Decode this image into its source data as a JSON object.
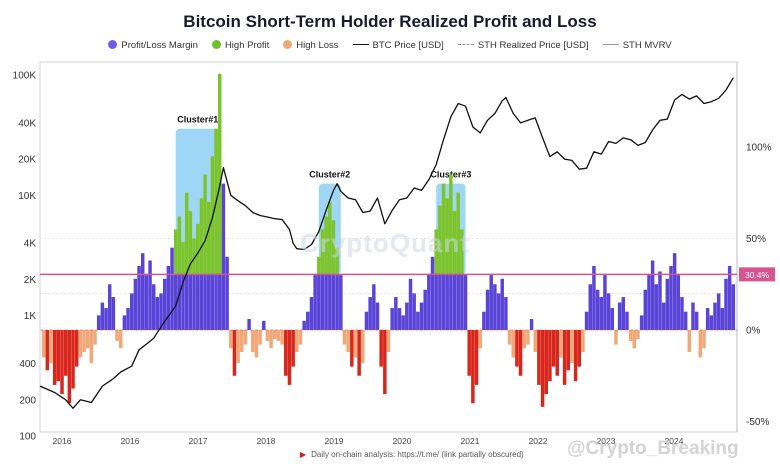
{
  "chart_data": {
    "type": "bar",
    "title": "Bitcoin Short-Term Holder Realized Profit and Loss",
    "legend": [
      {
        "label": "Profit/Loss Margin",
        "kind": "dot",
        "color": "#6d5ce8"
      },
      {
        "label": "High Profit",
        "kind": "dot",
        "color": "#6fc12a"
      },
      {
        "label": "High Loss",
        "kind": "dot",
        "color": "#f0a878"
      },
      {
        "label": "BTC Price [USD]",
        "kind": "line",
        "color": "#111111"
      },
      {
        "label": "STH Realized Price [USD]",
        "kind": "dash",
        "color": "#999999"
      },
      {
        "label": "STH MVRV",
        "kind": "line",
        "color": "#999999"
      }
    ],
    "legend_placement": "top-center",
    "x_ticks": [
      "2016",
      "2016",
      "2017",
      "2018",
      "2019",
      "2020",
      "2021",
      "2022",
      "2023",
      "2024"
    ],
    "left_axis": {
      "scale": "log",
      "ticks": [
        "100",
        "200",
        "400",
        "1K",
        "2K",
        "4K",
        "10K",
        "20K",
        "40K",
        "100K"
      ],
      "range": [
        100,
        100000
      ]
    },
    "right_axis": {
      "ticks": [
        "100%",
        "50%",
        "0%",
        "-50%"
      ],
      "range": [
        -50,
        150
      ]
    },
    "threshold": {
      "value": 30.4,
      "label": "30.4%",
      "color": "#d6558f"
    },
    "profit_loss_margin_color": "#5a44d8",
    "high_profit_color": "#7cc42a",
    "high_loss_color": "#f0a878",
    "deep_loss_color": "#d8261c",
    "btc_price_color": "#111111",
    "clusters": [
      {
        "label": "Cluster#1",
        "x_start": 2017.35,
        "x_end": 2017.95,
        "top_percent": 110
      },
      {
        "label": "Cluster#2",
        "x_start": 2019.3,
        "x_end": 2019.6,
        "top_percent": 80
      },
      {
        "label": "Cluster#3",
        "x_start": 2020.9,
        "x_end": 2021.3,
        "top_percent": 80
      }
    ],
    "cluster_color": "#86cdf2",
    "btc_price": [
      [
        2015.5,
        260
      ],
      [
        2015.7,
        230
      ],
      [
        2015.85,
        200
      ],
      [
        2015.95,
        170
      ],
      [
        2016.05,
        200
      ],
      [
        2016.2,
        190
      ],
      [
        2016.35,
        260
      ],
      [
        2016.5,
        300
      ],
      [
        2016.6,
        340
      ],
      [
        2016.75,
        380
      ],
      [
        2016.85,
        520
      ],
      [
        2016.95,
        580
      ],
      [
        2017.05,
        650
      ],
      [
        2017.2,
        900
      ],
      [
        2017.35,
        1200
      ],
      [
        2017.45,
        1900
      ],
      [
        2017.55,
        2700
      ],
      [
        2017.65,
        3300
      ],
      [
        2017.75,
        4200
      ],
      [
        2017.85,
        6500
      ],
      [
        2017.95,
        12000
      ],
      [
        2018.0,
        17000
      ],
      [
        2018.05,
        13000
      ],
      [
        2018.1,
        10000
      ],
      [
        2018.2,
        9000
      ],
      [
        2018.3,
        8200
      ],
      [
        2018.4,
        7200
      ],
      [
        2018.5,
        6800
      ],
      [
        2018.6,
        6600
      ],
      [
        2018.7,
        6400
      ],
      [
        2018.8,
        6300
      ],
      [
        2018.9,
        5200
      ],
      [
        2018.95,
        4000
      ],
      [
        2019.0,
        3600
      ],
      [
        2019.1,
        3550
      ],
      [
        2019.2,
        3900
      ],
      [
        2019.3,
        5000
      ],
      [
        2019.4,
        7500
      ],
      [
        2019.5,
        11000
      ],
      [
        2019.55,
        12500
      ],
      [
        2019.6,
        10800
      ],
      [
        2019.7,
        9500
      ],
      [
        2019.8,
        9200
      ],
      [
        2019.9,
        7200
      ],
      [
        2020.0,
        7400
      ],
      [
        2020.1,
        9500
      ],
      [
        2020.2,
        5800
      ],
      [
        2020.3,
        7500
      ],
      [
        2020.4,
        9200
      ],
      [
        2020.5,
        9500
      ],
      [
        2020.6,
        11500
      ],
      [
        2020.7,
        11000
      ],
      [
        2020.8,
        13500
      ],
      [
        2020.9,
        18000
      ],
      [
        2021.0,
        29000
      ],
      [
        2021.1,
        45000
      ],
      [
        2021.2,
        58000
      ],
      [
        2021.3,
        55000
      ],
      [
        2021.4,
        37000
      ],
      [
        2021.5,
        33000
      ],
      [
        2021.6,
        42000
      ],
      [
        2021.7,
        48000
      ],
      [
        2021.8,
        61000
      ],
      [
        2021.85,
        65000
      ],
      [
        2021.95,
        48000
      ],
      [
        2022.05,
        40000
      ],
      [
        2022.15,
        42000
      ],
      [
        2022.25,
        44000
      ],
      [
        2022.35,
        30000
      ],
      [
        2022.45,
        21000
      ],
      [
        2022.55,
        23000
      ],
      [
        2022.65,
        20000
      ],
      [
        2022.75,
        19500
      ],
      [
        2022.85,
        16500
      ],
      [
        2022.95,
        16800
      ],
      [
        2023.05,
        23000
      ],
      [
        2023.15,
        22000
      ],
      [
        2023.25,
        28000
      ],
      [
        2023.35,
        27000
      ],
      [
        2023.45,
        30000
      ],
      [
        2023.55,
        29000
      ],
      [
        2023.65,
        26000
      ],
      [
        2023.75,
        27500
      ],
      [
        2023.85,
        35000
      ],
      [
        2023.95,
        42000
      ],
      [
        2024.05,
        43000
      ],
      [
        2024.15,
        62000
      ],
      [
        2024.25,
        69000
      ],
      [
        2024.35,
        63000
      ],
      [
        2024.45,
        67000
      ],
      [
        2024.55,
        58000
      ],
      [
        2024.65,
        60000
      ],
      [
        2024.75,
        64000
      ],
      [
        2024.85,
        75000
      ],
      [
        2024.95,
        95000
      ]
    ],
    "margin_bars": [
      [
        2015.55,
        -15
      ],
      [
        2015.6,
        -22
      ],
      [
        2015.65,
        -18
      ],
      [
        2015.7,
        -30
      ],
      [
        2015.75,
        -28
      ],
      [
        2015.8,
        -35
      ],
      [
        2015.85,
        -25
      ],
      [
        2015.9,
        -40
      ],
      [
        2015.95,
        -32
      ],
      [
        2016.0,
        -20
      ],
      [
        2016.05,
        -15
      ],
      [
        2016.1,
        -12
      ],
      [
        2016.15,
        -10
      ],
      [
        2016.2,
        -18
      ],
      [
        2016.25,
        -8
      ],
      [
        2016.3,
        8
      ],
      [
        2016.35,
        15
      ],
      [
        2016.4,
        12
      ],
      [
        2016.45,
        25
      ],
      [
        2016.5,
        18
      ],
      [
        2016.55,
        -6
      ],
      [
        2016.6,
        -10
      ],
      [
        2016.65,
        8
      ],
      [
        2016.7,
        12
      ],
      [
        2016.75,
        20
      ],
      [
        2016.8,
        28
      ],
      [
        2016.85,
        35
      ],
      [
        2016.9,
        42
      ],
      [
        2016.95,
        30
      ],
      [
        2017.0,
        38
      ],
      [
        2017.05,
        25
      ],
      [
        2017.1,
        18
      ],
      [
        2017.15,
        20
      ],
      [
        2017.2,
        28
      ],
      [
        2017.25,
        35
      ],
      [
        2017.3,
        45
      ],
      [
        2017.35,
        55
      ],
      [
        2017.4,
        62
      ],
      [
        2017.45,
        48
      ],
      [
        2017.5,
        75
      ],
      [
        2017.55,
        65
      ],
      [
        2017.6,
        50
      ],
      [
        2017.65,
        58
      ],
      [
        2017.7,
        72
      ],
      [
        2017.75,
        85
      ],
      [
        2017.8,
        70
      ],
      [
        2017.85,
        95
      ],
      [
        2017.9,
        110
      ],
      [
        2017.95,
        140
      ],
      [
        2018.0,
        80
      ],
      [
        2018.05,
        40
      ],
      [
        2018.1,
        -10
      ],
      [
        2018.15,
        -25
      ],
      [
        2018.2,
        -18
      ],
      [
        2018.25,
        -12
      ],
      [
        2018.3,
        -8
      ],
      [
        2018.35,
        6
      ],
      [
        2018.4,
        -12
      ],
      [
        2018.45,
        -15
      ],
      [
        2018.5,
        -8
      ],
      [
        2018.55,
        5
      ],
      [
        2018.6,
        -6
      ],
      [
        2018.65,
        -10
      ],
      [
        2018.7,
        -5
      ],
      [
        2018.75,
        -6
      ],
      [
        2018.8,
        -8
      ],
      [
        2018.85,
        -25
      ],
      [
        2018.9,
        -30
      ],
      [
        2018.95,
        -20
      ],
      [
        2019.0,
        -12
      ],
      [
        2019.05,
        -8
      ],
      [
        2019.1,
        5
      ],
      [
        2019.15,
        10
      ],
      [
        2019.2,
        18
      ],
      [
        2019.25,
        30
      ],
      [
        2019.3,
        40
      ],
      [
        2019.35,
        55
      ],
      [
        2019.4,
        62
      ],
      [
        2019.45,
        70
      ],
      [
        2019.5,
        60
      ],
      [
        2019.55,
        45
      ],
      [
        2019.6,
        30
      ],
      [
        2019.65,
        -8
      ],
      [
        2019.7,
        -12
      ],
      [
        2019.75,
        -20
      ],
      [
        2019.8,
        -15
      ],
      [
        2019.85,
        -25
      ],
      [
        2019.9,
        -18
      ],
      [
        2019.95,
        10
      ],
      [
        2020.0,
        18
      ],
      [
        2020.05,
        25
      ],
      [
        2020.1,
        15
      ],
      [
        2020.15,
        -20
      ],
      [
        2020.2,
        -35
      ],
      [
        2020.25,
        -12
      ],
      [
        2020.3,
        12
      ],
      [
        2020.35,
        18
      ],
      [
        2020.4,
        12
      ],
      [
        2020.45,
        8
      ],
      [
        2020.5,
        15
      ],
      [
        2020.55,
        28
      ],
      [
        2020.6,
        20
      ],
      [
        2020.65,
        10
      ],
      [
        2020.7,
        15
      ],
      [
        2020.75,
        22
      ],
      [
        2020.8,
        30
      ],
      [
        2020.85,
        40
      ],
      [
        2020.9,
        55
      ],
      [
        2020.95,
        68
      ],
      [
        2021.0,
        80
      ],
      [
        2021.05,
        72
      ],
      [
        2021.1,
        85
      ],
      [
        2021.15,
        65
      ],
      [
        2021.2,
        75
      ],
      [
        2021.25,
        55
      ],
      [
        2021.3,
        30
      ],
      [
        2021.35,
        -25
      ],
      [
        2021.4,
        -40
      ],
      [
        2021.45,
        -30
      ],
      [
        2021.5,
        -10
      ],
      [
        2021.55,
        10
      ],
      [
        2021.6,
        22
      ],
      [
        2021.65,
        30
      ],
      [
        2021.7,
        25
      ],
      [
        2021.75,
        20
      ],
      [
        2021.8,
        28
      ],
      [
        2021.85,
        18
      ],
      [
        2021.9,
        -8
      ],
      [
        2021.95,
        -15
      ],
      [
        2022.0,
        -20
      ],
      [
        2022.05,
        -25
      ],
      [
        2022.1,
        -10
      ],
      [
        2022.15,
        -8
      ],
      [
        2022.2,
        6
      ],
      [
        2022.25,
        -12
      ],
      [
        2022.3,
        -30
      ],
      [
        2022.35,
        -42
      ],
      [
        2022.4,
        -35
      ],
      [
        2022.45,
        -28
      ],
      [
        2022.5,
        -20
      ],
      [
        2022.55,
        -25
      ],
      [
        2022.6,
        -15
      ],
      [
        2022.65,
        -30
      ],
      [
        2022.7,
        -22
      ],
      [
        2022.75,
        -18
      ],
      [
        2022.8,
        -28
      ],
      [
        2022.85,
        -20
      ],
      [
        2022.9,
        -12
      ],
      [
        2022.95,
        10
      ],
      [
        2023.0,
        25
      ],
      [
        2023.05,
        35
      ],
      [
        2023.1,
        22
      ],
      [
        2023.15,
        18
      ],
      [
        2023.2,
        30
      ],
      [
        2023.25,
        20
      ],
      [
        2023.3,
        12
      ],
      [
        2023.35,
        -8
      ],
      [
        2023.4,
        15
      ],
      [
        2023.45,
        18
      ],
      [
        2023.5,
        10
      ],
      [
        2023.55,
        -6
      ],
      [
        2023.6,
        -10
      ],
      [
        2023.65,
        -5
      ],
      [
        2023.7,
        8
      ],
      [
        2023.75,
        22
      ],
      [
        2023.8,
        30
      ],
      [
        2023.85,
        38
      ],
      [
        2023.9,
        25
      ],
      [
        2023.95,
        32
      ],
      [
        2024.0,
        15
      ],
      [
        2024.05,
        28
      ],
      [
        2024.1,
        35
      ],
      [
        2024.15,
        42
      ],
      [
        2024.2,
        30
      ],
      [
        2024.25,
        18
      ],
      [
        2024.3,
        10
      ],
      [
        2024.35,
        -12
      ],
      [
        2024.4,
        15
      ],
      [
        2024.45,
        10
      ],
      [
        2024.5,
        -15
      ],
      [
        2024.55,
        -10
      ],
      [
        2024.6,
        12
      ],
      [
        2024.65,
        8
      ],
      [
        2024.7,
        15
      ],
      [
        2024.75,
        20
      ],
      [
        2024.8,
        12
      ],
      [
        2024.85,
        28
      ],
      [
        2024.9,
        35
      ],
      [
        2024.95,
        25
      ]
    ]
  },
  "footer": {
    "text": "Daily on-chain analysis: https://t.me/ (link partially obscured)"
  },
  "watermark": "CryptoQuant",
  "badge": "@Crypto_Breaking"
}
